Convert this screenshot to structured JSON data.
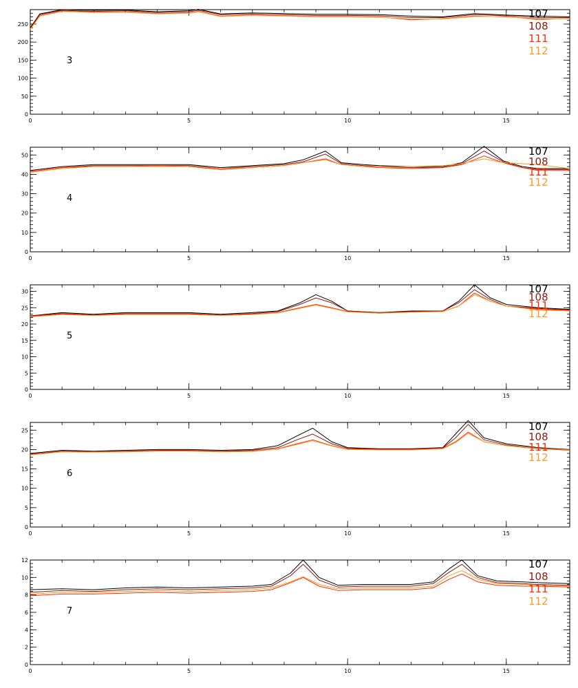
{
  "chart_data": [
    {
      "type": "line",
      "panel_label": "3",
      "xlim": [
        0,
        17
      ],
      "ylim": [
        0,
        290
      ],
      "xticks": [
        0,
        5,
        10,
        15
      ],
      "yticks": [
        0,
        50,
        100,
        150,
        200,
        250
      ],
      "grid": false,
      "legend_position": "top-right",
      "series": [
        {
          "name": "107",
          "color": "#000000",
          "x": [
            0,
            0.3,
            1,
            2,
            3,
            4,
            5,
            5.3,
            6,
            7,
            8,
            9,
            10,
            11,
            12,
            13,
            14,
            15,
            16,
            17
          ],
          "y": [
            240,
            278,
            290,
            288,
            289,
            284,
            287,
            291,
            278,
            281,
            279,
            277,
            277,
            276,
            272,
            270,
            279,
            275,
            272,
            270
          ]
        },
        {
          "name": "108",
          "color": "#8a1a10",
          "x": [
            0,
            0.3,
            1,
            2,
            3,
            4,
            5,
            5.3,
            6,
            7,
            8,
            9,
            10,
            11,
            12,
            13,
            14,
            15,
            16,
            17
          ],
          "y": [
            238,
            276,
            288,
            285,
            287,
            282,
            284,
            288,
            276,
            278,
            276,
            274,
            274,
            273,
            268,
            268,
            276,
            273,
            268,
            268
          ]
        },
        {
          "name": "111",
          "color": "#ff2a00",
          "x": [
            0,
            0.3,
            1,
            2,
            3,
            4,
            5,
            5.3,
            6,
            7,
            8,
            9,
            10,
            11,
            12,
            13,
            14,
            15,
            16,
            17
          ],
          "y": [
            236,
            273,
            286,
            283,
            284,
            279,
            281,
            285,
            272,
            275,
            273,
            271,
            271,
            270,
            262,
            265,
            272,
            270,
            264,
            265
          ]
        },
        {
          "name": "112",
          "color": "#ff9a1f",
          "x": [
            0,
            0.3,
            1,
            2,
            3,
            4,
            5,
            5.3,
            6,
            7,
            8,
            9,
            10,
            11,
            12,
            13,
            14,
            15,
            16,
            17
          ],
          "y": [
            235,
            272,
            285,
            282,
            283,
            278,
            280,
            284,
            271,
            274,
            272,
            270,
            270,
            269,
            264,
            264,
            271,
            271,
            262,
            266
          ]
        }
      ]
    },
    {
      "type": "line",
      "panel_label": "4",
      "xlim": [
        0,
        17
      ],
      "ylim": [
        0,
        54
      ],
      "xticks": [
        0,
        5,
        10,
        15
      ],
      "yticks": [
        0,
        10,
        20,
        30,
        40,
        50
      ],
      "grid": false,
      "legend_position": "top-right",
      "series": [
        {
          "name": "107",
          "color": "#000000",
          "x": [
            0,
            1,
            2,
            3,
            4,
            5,
            6,
            7,
            8,
            8.6,
            9.3,
            9.8,
            10.5,
            11,
            12,
            13,
            13.6,
            14.3,
            14.9,
            15.5,
            16,
            17
          ],
          "y": [
            42,
            44,
            45,
            45,
            45,
            45,
            43.5,
            44.5,
            45.5,
            47.5,
            52,
            46,
            45,
            44.5,
            44,
            44,
            46,
            54.5,
            47,
            44,
            43,
            43
          ]
        },
        {
          "name": "108",
          "color": "#8a1a10",
          "x": [
            0,
            1,
            2,
            3,
            4,
            5,
            6,
            7,
            8,
            8.6,
            9.3,
            9.8,
            10.5,
            11,
            12,
            13,
            13.6,
            14.3,
            14.9,
            15.5,
            16,
            17
          ],
          "y": [
            41.5,
            43.5,
            44.5,
            44.5,
            44.5,
            44.5,
            43,
            44,
            45,
            46.5,
            50.5,
            45.5,
            44.5,
            44,
            43.5,
            43.5,
            45.5,
            52,
            46.5,
            43.5,
            42.5,
            42.5
          ]
        },
        {
          "name": "111",
          "color": "#ff2a00",
          "x": [
            0,
            1,
            2,
            3,
            4,
            5,
            6,
            7,
            8,
            8.6,
            9.3,
            9.8,
            10.5,
            11,
            12,
            13,
            13.6,
            14.3,
            14.9,
            15.5,
            16,
            17
          ],
          "y": [
            41.5,
            43.5,
            44,
            44,
            44.5,
            44,
            42.5,
            43.5,
            44.5,
            46,
            48,
            45,
            44,
            43.5,
            43,
            43.5,
            45,
            49.5,
            46,
            43.5,
            42,
            42
          ]
        },
        {
          "name": "112",
          "color": "#ff9a1f",
          "x": [
            0,
            1,
            2,
            3,
            4,
            5,
            6,
            7,
            8,
            8.6,
            9.3,
            9.8,
            10.5,
            11,
            12,
            13,
            13.6,
            14.3,
            14.9,
            15.5,
            16,
            17
          ],
          "y": [
            41,
            43,
            44,
            44,
            44,
            44,
            43,
            43.5,
            44.5,
            46,
            47.5,
            45,
            44,
            44,
            44,
            44.5,
            45.5,
            48,
            46,
            45.5,
            45,
            43
          ]
        }
      ]
    },
    {
      "type": "line",
      "panel_label": "5",
      "xlim": [
        0,
        17
      ],
      "ylim": [
        0,
        32
      ],
      "xticks": [
        0,
        5,
        10,
        15
      ],
      "yticks": [
        0,
        5,
        10,
        15,
        20,
        25,
        30
      ],
      "grid": false,
      "legend_position": "top-right",
      "series": [
        {
          "name": "107",
          "color": "#000000",
          "x": [
            0,
            1,
            2,
            3,
            4,
            5,
            6,
            7,
            7.8,
            8.5,
            9,
            9.5,
            10,
            11,
            12,
            13,
            13.5,
            14,
            14.5,
            15,
            16,
            17
          ],
          "y": [
            22.5,
            23.5,
            23,
            23.5,
            23.5,
            23.5,
            23,
            23.5,
            24,
            26.5,
            29,
            27,
            24,
            23.5,
            24,
            24,
            27,
            32,
            28,
            26,
            25,
            24.5
          ]
        },
        {
          "name": "108",
          "color": "#8a1a10",
          "x": [
            0,
            1,
            2,
            3,
            4,
            5,
            6,
            7,
            7.8,
            8.5,
            9,
            9.5,
            10,
            11,
            12,
            13,
            13.5,
            14,
            14.5,
            15,
            16,
            17
          ],
          "y": [
            22.5,
            23.2,
            22.8,
            23.2,
            23.2,
            23.2,
            22.8,
            23.2,
            23.8,
            26,
            28,
            26.5,
            24,
            23.5,
            23.8,
            24,
            26.5,
            30.5,
            27.5,
            25.5,
            24.8,
            24.3
          ]
        },
        {
          "name": "111",
          "color": "#ff2a00",
          "x": [
            0,
            1,
            2,
            3,
            4,
            5,
            6,
            7,
            7.8,
            8.5,
            9,
            9.5,
            10,
            11,
            12,
            13,
            13.5,
            14,
            14.5,
            15,
            16,
            17
          ],
          "y": [
            22.3,
            23,
            22.7,
            23,
            23,
            23,
            22.7,
            23,
            23.5,
            25,
            26,
            25,
            23.8,
            23.3,
            23.7,
            23.8,
            25.5,
            29.5,
            27,
            25.5,
            24.5,
            24.2
          ]
        },
        {
          "name": "112",
          "color": "#ff9a1f",
          "x": [
            0,
            1,
            2,
            3,
            4,
            5,
            6,
            7,
            7.8,
            8.5,
            9,
            9.5,
            10,
            11,
            12,
            13,
            13.5,
            14,
            14.5,
            15,
            16,
            17
          ],
          "y": [
            22.2,
            22.9,
            22.6,
            22.9,
            22.9,
            22.9,
            22.6,
            22.9,
            23.4,
            24.8,
            25.8,
            24.8,
            23.7,
            23.3,
            23.6,
            23.8,
            25.5,
            29,
            27,
            25.5,
            24.3,
            24
          ]
        }
      ]
    },
    {
      "type": "line",
      "panel_label": "6",
      "xlim": [
        0,
        17
      ],
      "ylim": [
        0,
        27
      ],
      "xticks": [
        0,
        5,
        10,
        15
      ],
      "yticks": [
        0,
        5,
        10,
        15,
        20,
        25
      ],
      "grid": false,
      "legend_position": "top-right",
      "series": [
        {
          "name": "107",
          "color": "#000000",
          "x": [
            0,
            1,
            2,
            3,
            4,
            5,
            6,
            7,
            7.8,
            8.4,
            8.9,
            9.5,
            10,
            11,
            12,
            13,
            13.4,
            13.8,
            14.3,
            15,
            16,
            17
          ],
          "y": [
            19,
            19.8,
            19.6,
            19.8,
            20,
            20,
            19.8,
            20,
            21,
            23.5,
            25.5,
            22,
            20.5,
            20.2,
            20.2,
            20.5,
            24,
            27.5,
            23,
            21.5,
            20.5,
            20
          ]
        },
        {
          "name": "108",
          "color": "#8a1a10",
          "x": [
            0,
            1,
            2,
            3,
            4,
            5,
            6,
            7,
            7.8,
            8.4,
            8.9,
            9.5,
            10,
            11,
            12,
            13,
            13.4,
            13.8,
            14.3,
            15,
            16,
            17
          ],
          "y": [
            18.8,
            19.6,
            19.5,
            19.6,
            19.8,
            19.8,
            19.6,
            19.8,
            20.5,
            22.5,
            24,
            21.5,
            20.3,
            20.1,
            20.1,
            20.4,
            23,
            26.5,
            22.5,
            21.2,
            20.3,
            19.9
          ]
        },
        {
          "name": "111",
          "color": "#ff2a00",
          "x": [
            0,
            1,
            2,
            3,
            4,
            5,
            6,
            7,
            7.8,
            8.4,
            8.9,
            9.5,
            10,
            11,
            12,
            13,
            13.4,
            13.8,
            14.3,
            15,
            16,
            17
          ],
          "y": [
            18.7,
            19.5,
            19.4,
            19.5,
            19.7,
            19.7,
            19.5,
            19.6,
            20.2,
            21.5,
            22.5,
            21,
            20.1,
            20,
            20,
            20.3,
            22,
            24.5,
            22,
            21,
            20.2,
            19.8
          ]
        },
        {
          "name": "112",
          "color": "#ff9a1f",
          "x": [
            0,
            1,
            2,
            3,
            4,
            5,
            6,
            7,
            7.8,
            8.4,
            8.9,
            9.5,
            10,
            11,
            12,
            13,
            13.4,
            13.8,
            14.3,
            15,
            16,
            17
          ],
          "y": [
            18.6,
            19.4,
            19.3,
            19.4,
            19.6,
            19.6,
            19.4,
            19.5,
            20.1,
            21.3,
            22.3,
            20.9,
            20,
            19.9,
            19.9,
            20.2,
            21.8,
            24.2,
            22,
            21,
            20.3,
            19.9
          ]
        }
      ]
    },
    {
      "type": "line",
      "panel_label": "7",
      "xlim": [
        0,
        17
      ],
      "ylim": [
        0,
        12
      ],
      "xticks": [
        0,
        5,
        10,
        15
      ],
      "yticks": [
        0,
        2,
        4,
        6,
        8,
        10,
        12
      ],
      "grid": false,
      "legend_position": "top-right",
      "series": [
        {
          "name": "107",
          "color": "#000000",
          "x": [
            0,
            1,
            2,
            3,
            4,
            5,
            6,
            7,
            7.6,
            8.2,
            8.6,
            9.1,
            9.7,
            10.5,
            11,
            12,
            12.7,
            13.2,
            13.6,
            14.1,
            14.7,
            15.5,
            16,
            17
          ],
          "y": [
            8.6,
            8.7,
            8.6,
            8.8,
            8.9,
            8.8,
            8.9,
            9,
            9.2,
            10.5,
            12,
            10,
            9.1,
            9.2,
            9.2,
            9.2,
            9.5,
            11,
            12,
            10.2,
            9.6,
            9.5,
            9.4,
            9.3
          ]
        },
        {
          "name": "108",
          "color": "#8a1a10",
          "x": [
            0,
            1,
            2,
            3,
            4,
            5,
            6,
            7,
            7.6,
            8.2,
            8.6,
            9.1,
            9.7,
            10.5,
            11,
            12,
            12.7,
            13.2,
            13.6,
            14.1,
            14.7,
            15.5,
            16,
            17
          ],
          "y": [
            8.3,
            8.5,
            8.4,
            8.6,
            8.7,
            8.6,
            8.7,
            8.8,
            9,
            10.2,
            11.5,
            9.7,
            8.9,
            9,
            9,
            9,
            9.3,
            10.6,
            11.5,
            10,
            9.4,
            9.3,
            9.2,
            9.1
          ]
        },
        {
          "name": "111",
          "color": "#ff2a00",
          "x": [
            0,
            1,
            2,
            3,
            4,
            5,
            6,
            7,
            7.6,
            8.2,
            8.6,
            9.1,
            9.7,
            10.5,
            11,
            12,
            12.7,
            13.2,
            13.6,
            14.1,
            14.7,
            15.5,
            16,
            17
          ],
          "y": [
            7.9,
            8.1,
            8.1,
            8.2,
            8.3,
            8.2,
            8.3,
            8.4,
            8.6,
            9.4,
            10,
            9,
            8.5,
            8.6,
            8.6,
            8.6,
            8.8,
            9.8,
            10.4,
            9.5,
            9.1,
            9,
            9,
            8.9
          ]
        },
        {
          "name": "112",
          "color": "#ff9a1f",
          "x": [
            0,
            1,
            2,
            3,
            4,
            5,
            6,
            7,
            7.6,
            8.2,
            8.6,
            9.1,
            9.7,
            10.5,
            11,
            12,
            12.7,
            13.2,
            13.6,
            14.1,
            14.7,
            15.5,
            16,
            17
          ],
          "y": [
            8.1,
            8.3,
            8.3,
            8.4,
            8.5,
            8.4,
            8.5,
            8.6,
            8.8,
            9.5,
            10.1,
            9.2,
            8.7,
            8.8,
            8.8,
            8.8,
            9,
            10.2,
            10.8,
            9.8,
            9.3,
            9.2,
            9.1,
            9
          ]
        }
      ]
    }
  ]
}
